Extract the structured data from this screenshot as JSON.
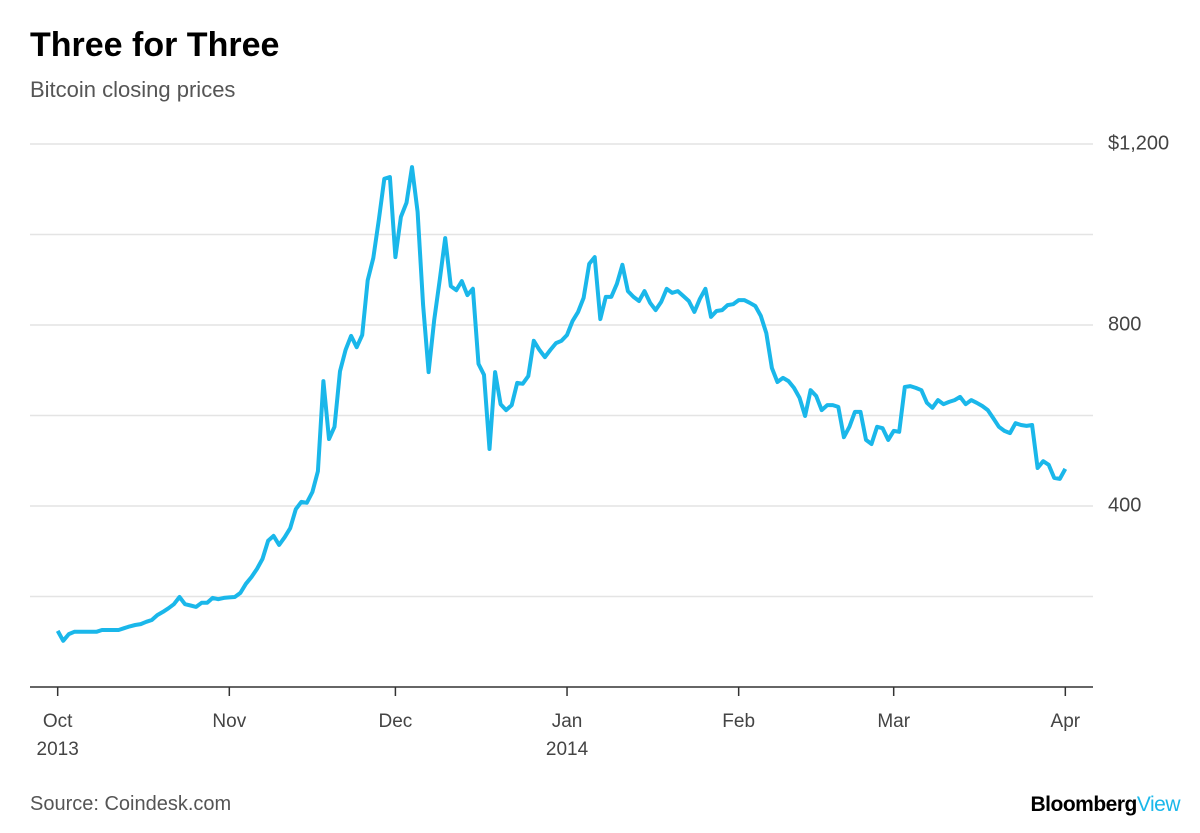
{
  "title": "Three for Three",
  "subtitle": "Bitcoin closing prices",
  "source": "Source: Coindesk.com",
  "branding": {
    "name": "Bloomberg",
    "product": "View"
  },
  "chart_data": {
    "type": "line",
    "x": [
      0,
      1,
      2,
      3,
      4,
      5,
      6,
      7,
      8,
      9,
      10,
      11,
      12,
      13,
      14,
      15,
      16,
      17,
      18,
      19,
      20,
      21,
      22,
      23,
      24,
      25,
      26,
      27,
      28,
      29,
      30,
      31,
      32,
      33,
      34,
      35,
      36,
      37,
      38,
      39,
      40,
      41,
      42,
      43,
      44,
      45,
      46,
      47,
      48,
      49,
      50,
      51,
      52,
      53,
      54,
      55,
      56,
      57,
      58,
      59,
      60,
      61,
      62,
      63,
      64,
      65,
      66,
      67,
      68,
      69,
      70,
      71,
      72,
      73,
      74,
      75,
      76,
      77,
      78,
      79,
      80,
      81,
      82,
      83,
      84,
      85,
      86,
      87,
      88,
      89,
      90,
      91,
      92,
      93,
      94,
      95,
      96,
      97,
      98,
      99,
      100,
      101,
      102,
      103,
      104,
      105,
      106,
      107,
      108,
      109,
      110,
      111,
      112,
      113,
      114,
      115,
      116,
      117,
      118,
      119,
      120,
      121,
      122,
      123,
      124,
      125,
      126,
      127,
      128,
      129,
      130,
      131,
      132,
      133,
      134,
      135,
      136,
      137,
      138,
      139,
      140,
      141,
      142,
      143,
      144,
      145,
      146,
      147,
      148,
      149,
      150,
      151,
      152,
      153,
      154,
      155,
      156,
      157,
      158,
      159,
      160,
      161,
      162,
      163,
      164,
      165,
      166,
      167,
      168,
      169,
      170,
      171,
      172,
      173,
      174,
      175,
      176,
      177,
      178,
      179,
      180,
      181,
      182
    ],
    "series": [
      {
        "color": "#1ab7ea",
        "values": [
          124,
          102,
          117,
          122,
          122,
          122,
          122,
          122,
          126,
          126,
          126,
          126,
          130,
          134,
          137,
          139,
          144,
          148,
          159,
          166,
          174,
          183,
          199,
          183,
          180,
          177,
          186,
          186,
          197,
          194,
          197,
          198,
          199,
          208,
          228,
          243,
          261,
          283,
          323,
          334,
          314,
          331,
          351,
          393,
          409,
          407,
          431,
          477,
          676,
          548,
          575,
          698,
          745,
          776,
          751,
          778,
          899,
          948,
          1032,
          1123,
          1127,
          950,
          1039,
          1070,
          1149,
          1050,
          844,
          696,
          811,
          899,
          992,
          886,
          877,
          897,
          866,
          880,
          714,
          690,
          526,
          696,
          625,
          612,
          623,
          672,
          670,
          687,
          765,
          745,
          729,
          745,
          760,
          765,
          778,
          809,
          829,
          860,
          935,
          950,
          813,
          862,
          862,
          891,
          933,
          875,
          862,
          853,
          875,
          849,
          833,
          851,
          880,
          871,
          875,
          864,
          853,
          829,
          858,
          880,
          818,
          831,
          833,
          844,
          846,
          855,
          855,
          849,
          842,
          820,
          782,
          705,
          674,
          683,
          676,
          661,
          639,
          599,
          656,
          643,
          612,
          623,
          623,
          619,
          552,
          575,
          608,
          608,
          546,
          537,
          575,
          572,
          546,
          566,
          564,
          663,
          665,
          661,
          656,
          628,
          617,
          634,
          625,
          630,
          634,
          641,
          625,
          634,
          628,
          621,
          612,
          594,
          575,
          566,
          561,
          583,
          579,
          577,
          579,
          484,
          499,
          491,
          462,
          460,
          482
        ]
      }
    ],
    "xlim": [
      -5,
      187
    ],
    "xticks": [
      {
        "value": 0,
        "label": "Oct 2013"
      },
      {
        "value": 31,
        "label": "Nov"
      },
      {
        "value": 61,
        "label": "Dec"
      },
      {
        "value": 92,
        "label": "Jan 2014"
      },
      {
        "value": 123,
        "label": "Feb"
      },
      {
        "value": 151,
        "label": "Mar"
      },
      {
        "value": 182,
        "label": "Apr"
      }
    ],
    "ylim": [
      0,
      1200
    ],
    "yticks": [
      400,
      800,
      {
        "value": 1200,
        "label": "$1,200"
      }
    ],
    "ygrid": [
      200,
      400,
      600,
      800,
      1000,
      1200
    ],
    "grid": true
  }
}
